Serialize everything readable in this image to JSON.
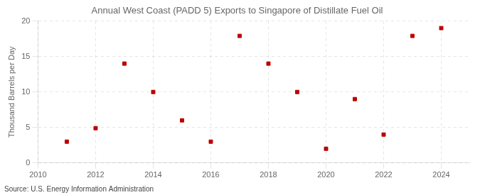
{
  "chart_data": {
    "type": "scatter",
    "title": "Annual West Coast (PADD 5) Exports to Singapore of Distillate Fuel Oil",
    "ylabel": "Thousand Barrels per Day",
    "source": "Source: U.S. Energy Information Administration",
    "x": [
      2011,
      2012,
      2013,
      2014,
      2015,
      2016,
      2017,
      2018,
      2019,
      2020,
      2021,
      2022,
      2023,
      2024
    ],
    "values": [
      3.0,
      4.9,
      14.0,
      10.0,
      6.0,
      3.0,
      17.9,
      14.0,
      10.0,
      2.0,
      9.0,
      4.0,
      17.9,
      19.0
    ],
    "color": "#bb0000",
    "marker": "square",
    "xlim": [
      2010,
      2025
    ],
    "xticks": [
      2010,
      2012,
      2014,
      2016,
      2018,
      2020,
      2022,
      2024
    ],
    "ylim": [
      0,
      20
    ],
    "yticks": [
      0,
      5,
      10,
      15,
      20
    ],
    "grid": true
  }
}
